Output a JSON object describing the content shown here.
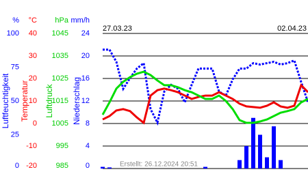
{
  "chart_data": {
    "type": "line",
    "date_labels": [
      "27.03.23",
      "02.04.23"
    ],
    "footer": "Erstellt: 26.12.2024 20:51",
    "axes": [
      {
        "unit": "%",
        "title": "Luftfeuchtigkeit",
        "color": "#0000ff",
        "ylim": [
          0,
          100
        ],
        "yticks": [
          0,
          25,
          50,
          75,
          100
        ]
      },
      {
        "unit": "°C",
        "title": "Temperatur",
        "color": "#ff0000",
        "ylim": [
          -20,
          40
        ],
        "yticks": [
          -20,
          -10,
          0,
          10,
          20,
          30,
          40
        ]
      },
      {
        "unit": "hPa",
        "title": "Luftdruck",
        "color": "#00cc00",
        "ylim": [
          985,
          1045
        ],
        "yticks": [
          985,
          995,
          1005,
          1015,
          1025,
          1035,
          1045
        ]
      },
      {
        "unit": "mm/h",
        "title": "Niederschlag",
        "color": "#0000ff",
        "ylim": [
          0,
          24
        ],
        "yticks": [
          0,
          4,
          8,
          12,
          16,
          20,
          24
        ],
        "grid": true
      }
    ],
    "series": [
      {
        "axis": 3,
        "type": "bar",
        "color": "#0000ff",
        "values": [
          0.3,
          0.2,
          0,
          0,
          0,
          0,
          0,
          0,
          0,
          0,
          0,
          0,
          0,
          0,
          0,
          0.3,
          0,
          0,
          0,
          0,
          1.5,
          4,
          9,
          6,
          2,
          7.5,
          1.5,
          0,
          0,
          0,
          0
        ]
      },
      {
        "axis": 0,
        "type": "line",
        "color": "#0000ff",
        "dashed": true,
        "values": [
          88,
          88,
          79,
          59,
          67,
          74,
          78,
          44,
          34,
          57,
          62,
          59,
          49,
          62,
          74,
          74,
          74,
          57,
          54,
          66,
          74,
          74,
          78,
          77,
          78,
          79,
          77,
          78,
          80,
          64,
          49
        ]
      },
      {
        "axis": 1,
        "type": "line",
        "color": "#ee0000",
        "values": [
          1.8,
          3.3,
          5.8,
          6.4,
          5.5,
          2.7,
          0.3,
          12.4,
          14.8,
          15.5,
          14.8,
          13.9,
          12.4,
          10.9,
          11.8,
          12.4,
          12.4,
          13.9,
          12.4,
          10.9,
          8.8,
          7.6,
          7.3,
          7.0,
          7.9,
          9.4,
          7.6,
          7.0,
          7.9,
          17.0,
          13.9
        ]
      },
      {
        "axis": 2,
        "type": "line",
        "color": "#00dd00",
        "values": [
          1008.9,
          1014.4,
          1020.5,
          1023.5,
          1025.6,
          1027.1,
          1028.0,
          1026.5,
          1024.1,
          1022.0,
          1022.0,
          1021.1,
          1019.8,
          1018.9,
          1017.4,
          1015.9,
          1015.9,
          1017.4,
          1015.0,
          1011.4,
          1006.5,
          1005.3,
          1005.3,
          1005.9,
          1006.8,
          1008.3,
          1009.8,
          1010.5,
          1011.4,
          1014.4,
          1015.9
        ]
      }
    ]
  }
}
